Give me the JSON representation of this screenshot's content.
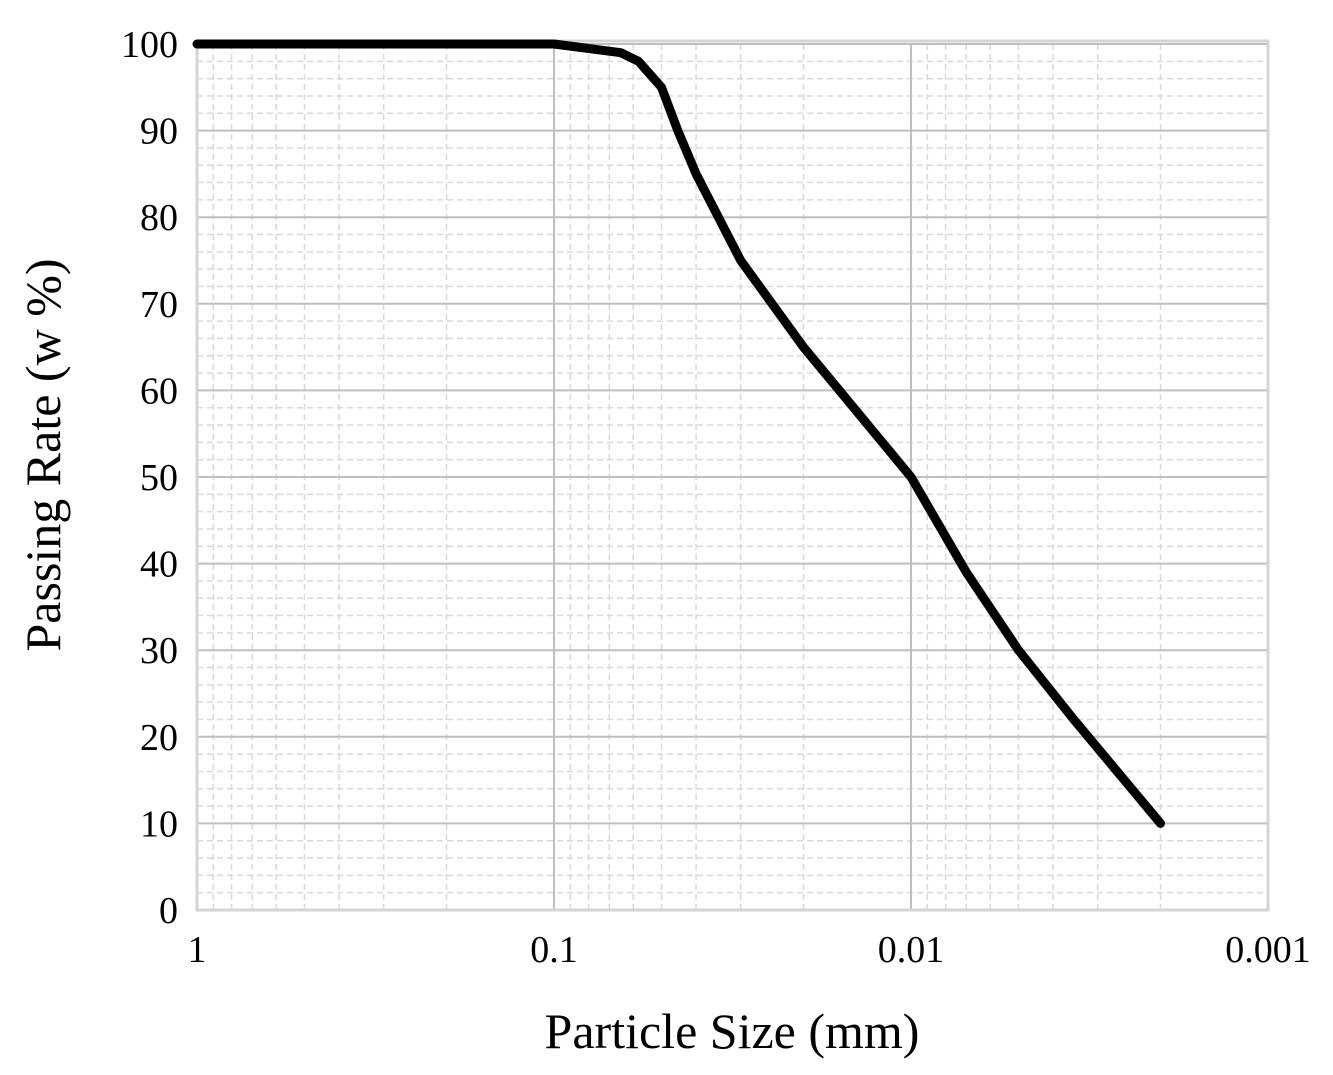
{
  "chart_data": {
    "type": "line",
    "title": "",
    "xlabel": "Particle Size (mm)",
    "ylabel": "Passing Rate (w %)",
    "x_scale": "log",
    "x_reversed": true,
    "xlim": [
      1,
      0.001
    ],
    "ylim": [
      0,
      100
    ],
    "x_ticks": [
      "1",
      "0.1",
      "0.01",
      "0.001"
    ],
    "y_ticks": [
      "0",
      "10",
      "20",
      "30",
      "40",
      "50",
      "60",
      "70",
      "80",
      "90",
      "100"
    ],
    "grid": {
      "major": true,
      "minor": true
    },
    "legend": "none",
    "line_color": "#000000",
    "series": [
      {
        "x": [
          1,
          0.1,
          0.065,
          0.058,
          0.05,
          0.045,
          0.04,
          0.03,
          0.02,
          0.01,
          0.007,
          0.005,
          0.0035,
          0.002
        ],
        "y": [
          100,
          100,
          99,
          98,
          95,
          90,
          85,
          75,
          65,
          50,
          39,
          30,
          22,
          10
        ]
      }
    ]
  }
}
